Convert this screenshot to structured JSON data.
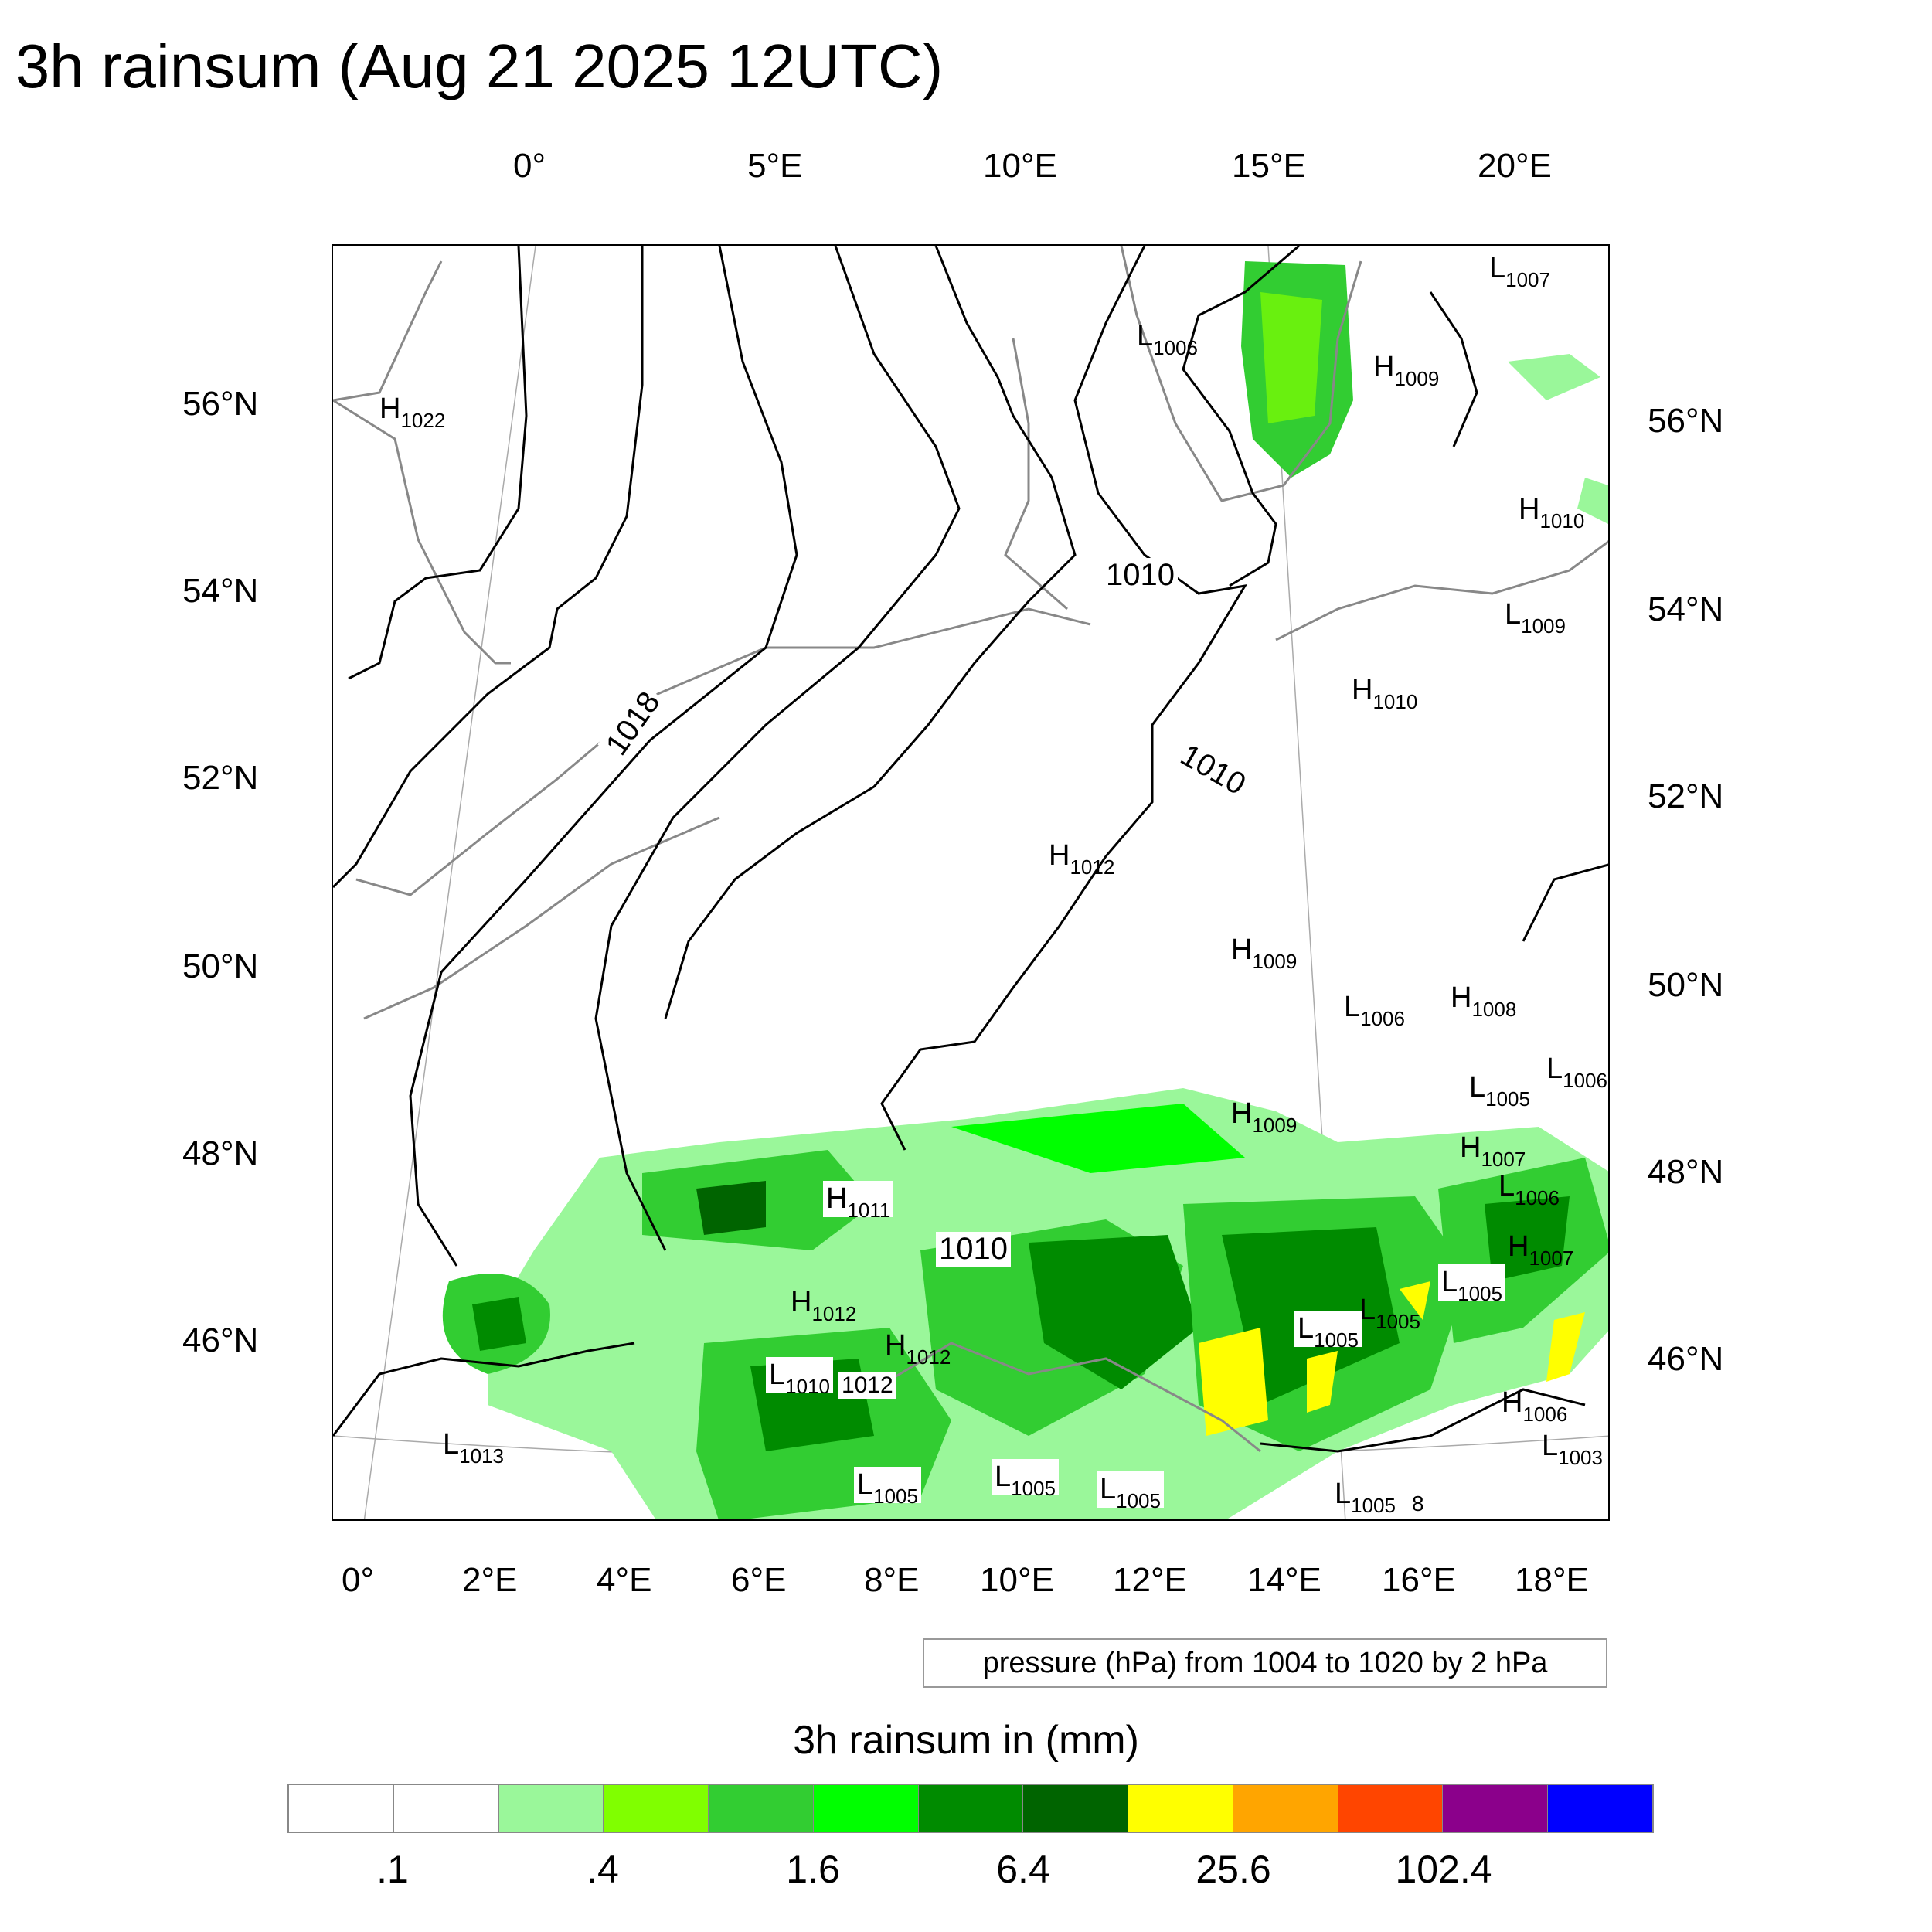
{
  "title": "3h rainsum (Aug 21 2025 12UTC)",
  "axes": {
    "top_ticks": [
      "0°",
      "5°E",
      "10°E",
      "15°E",
      "20°E"
    ],
    "bottom_ticks": [
      "0°",
      "2°E",
      "4°E",
      "6°E",
      "8°E",
      "10°E",
      "12°E",
      "14°E",
      "16°E",
      "18°E"
    ],
    "left_ticks": [
      "56°N",
      "54°N",
      "52°N",
      "50°N",
      "48°N",
      "46°N"
    ],
    "right_ticks": [
      "56°N",
      "54°N",
      "52°N",
      "50°N",
      "48°N",
      "46°N"
    ]
  },
  "pressure_centers": [
    {
      "type": "H",
      "value": "1022"
    },
    {
      "type": "L",
      "value": "1006"
    },
    {
      "type": "H",
      "value": "1009"
    },
    {
      "type": "L",
      "value": "1007"
    },
    {
      "type": "H",
      "value": "1010"
    },
    {
      "type": "L",
      "value": "1009"
    },
    {
      "type": "H",
      "value": "1010"
    },
    {
      "type": "H",
      "value": "1012"
    },
    {
      "type": "H",
      "value": "1009"
    },
    {
      "type": "L",
      "value": "1006"
    },
    {
      "type": "H",
      "value": "1008"
    },
    {
      "type": "L",
      "value": "1005"
    },
    {
      "type": "L",
      "value": "1006"
    },
    {
      "type": "H",
      "value": "1009"
    },
    {
      "type": "H",
      "value": "1007"
    },
    {
      "type": "L",
      "value": "1006"
    },
    {
      "type": "H",
      "value": "1011"
    },
    {
      "type": "H",
      "value": "1012"
    },
    {
      "type": "H",
      "value": "1012"
    },
    {
      "type": "L",
      "value": "1010"
    },
    {
      "type": "H",
      "value": "1007"
    },
    {
      "type": "L",
      "value": "1005"
    },
    {
      "type": "L",
      "value": "1005"
    },
    {
      "type": "L",
      "value": "1005"
    },
    {
      "type": "L",
      "value": "1013"
    },
    {
      "type": "L",
      "value": "1005"
    },
    {
      "type": "L",
      "value": "1005"
    },
    {
      "type": "L",
      "value": "1005"
    },
    {
      "type": "L",
      "value": "1005"
    },
    {
      "type": "H",
      "value": "1006"
    },
    {
      "type": "L",
      "value": "1003"
    }
  ],
  "contour_labels": [
    "1018",
    "1010",
    "1010",
    "1010",
    "1012",
    "8"
  ],
  "pressure_info": "pressure (hPa) from 1004 to 1020 by 2 hPa",
  "colorbar": {
    "title": "3h rainsum in (mm)",
    "colors": [
      "#ffffff",
      "#ffffff",
      "#9af79a",
      "#80ff00",
      "#32cd32",
      "#00ff00",
      "#008b00",
      "#006400",
      "#ffff00",
      "#ffa500",
      "#ff4500",
      "#8b008b",
      "#0000ff"
    ],
    "labels": [
      ".1",
      ".4",
      "1.6",
      "6.4",
      "25.6",
      "102.4"
    ]
  }
}
